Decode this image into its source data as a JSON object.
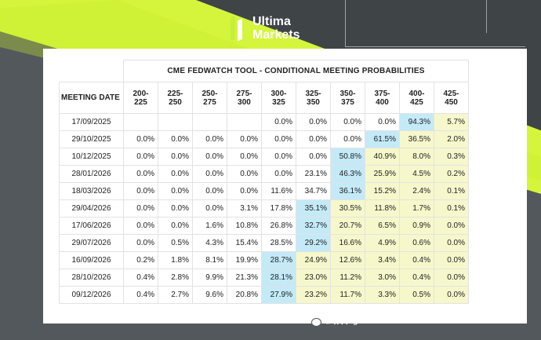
{
  "brand": {
    "line1": "Ultima",
    "line2": "Markets"
  },
  "table": {
    "title": "CME FEDWATCH TOOL - CONDITIONAL MEETING PROBABILITIES",
    "date_header": "MEETING DATE",
    "columns": [
      "200-225",
      "225-250",
      "250-275",
      "275-300",
      "300-325",
      "325-350",
      "350-375",
      "375-400",
      "400-425",
      "425-450"
    ],
    "rows": [
      {
        "date": "17/09/2025",
        "values": [
          "",
          "",
          "",
          "",
          "0.0%",
          "0.0%",
          "0.0%",
          "0.0%",
          "94.3%",
          "5.7%"
        ]
      },
      {
        "date": "29/10/2025",
        "values": [
          "0.0%",
          "0.0%",
          "0.0%",
          "0.0%",
          "0.0%",
          "0.0%",
          "0.0%",
          "61.5%",
          "36.5%",
          "2.0%"
        ]
      },
      {
        "date": "10/12/2025",
        "values": [
          "0.0%",
          "0.0%",
          "0.0%",
          "0.0%",
          "0.0%",
          "0.0%",
          "50.8%",
          "40.9%",
          "8.0%",
          "0.3%"
        ]
      },
      {
        "date": "28/01/2026",
        "values": [
          "0.0%",
          "0.0%",
          "0.0%",
          "0.0%",
          "0.0%",
          "23.1%",
          "46.3%",
          "25.9%",
          "4.5%",
          "0.2%"
        ]
      },
      {
        "date": "18/03/2026",
        "values": [
          "0.0%",
          "0.0%",
          "0.0%",
          "0.0%",
          "11.6%",
          "34.7%",
          "36.1%",
          "15.2%",
          "2.4%",
          "0.1%"
        ]
      },
      {
        "date": "29/04/2026",
        "values": [
          "0.0%",
          "0.0%",
          "0.0%",
          "3.1%",
          "17.8%",
          "35.1%",
          "30.5%",
          "11.8%",
          "1.7%",
          "0.1%"
        ]
      },
      {
        "date": "17/06/2026",
        "values": [
          "0.0%",
          "0.0%",
          "1.6%",
          "10.8%",
          "26.8%",
          "32.7%",
          "20.7%",
          "6.5%",
          "0.9%",
          "0.0%"
        ]
      },
      {
        "date": "29/07/2026",
        "values": [
          "0.0%",
          "0.5%",
          "4.3%",
          "15.4%",
          "28.5%",
          "29.2%",
          "16.6%",
          "4.9%",
          "0.6%",
          "0.0%"
        ]
      },
      {
        "date": "16/09/2026",
        "values": [
          "0.2%",
          "1.8%",
          "8.1%",
          "19.9%",
          "28.7%",
          "24.9%",
          "12.6%",
          "3.4%",
          "0.4%",
          "0.0%"
        ]
      },
      {
        "date": "28/10/2026",
        "values": [
          "0.4%",
          "2.8%",
          "9.9%",
          "21.3%",
          "28.1%",
          "23.0%",
          "11.2%",
          "3.0%",
          "0.4%",
          "0.0%"
        ]
      },
      {
        "date": "09/12/2026",
        "values": [
          "0.4%",
          "2.7%",
          "9.6%",
          "20.8%",
          "27.9%",
          "23.2%",
          "11.7%",
          "3.3%",
          "0.5%",
          "0.0%"
        ]
      }
    ],
    "highlights": {
      "blue": [
        [
          0,
          8
        ],
        [
          1,
          7
        ],
        [
          2,
          6
        ],
        [
          3,
          6
        ],
        [
          4,
          6
        ],
        [
          5,
          5
        ],
        [
          6,
          5
        ],
        [
          7,
          5
        ],
        [
          8,
          4
        ],
        [
          9,
          4
        ],
        [
          10,
          4
        ]
      ],
      "yellow": [
        [
          0,
          9
        ],
        [
          1,
          8
        ],
        [
          1,
          9
        ],
        [
          2,
          7
        ],
        [
          2,
          8
        ],
        [
          2,
          9
        ],
        [
          3,
          7
        ],
        [
          3,
          8
        ],
        [
          3,
          9
        ],
        [
          4,
          7
        ],
        [
          4,
          8
        ],
        [
          4,
          9
        ],
        [
          5,
          6
        ],
        [
          5,
          7
        ],
        [
          5,
          8
        ],
        [
          5,
          9
        ],
        [
          6,
          6
        ],
        [
          6,
          7
        ],
        [
          6,
          8
        ],
        [
          6,
          9
        ],
        [
          7,
          6
        ],
        [
          7,
          7
        ],
        [
          7,
          8
        ],
        [
          7,
          9
        ],
        [
          8,
          5
        ],
        [
          8,
          6
        ],
        [
          8,
          7
        ],
        [
          8,
          8
        ],
        [
          8,
          9
        ],
        [
          9,
          5
        ],
        [
          9,
          6
        ],
        [
          9,
          7
        ],
        [
          9,
          8
        ],
        [
          9,
          9
        ],
        [
          10,
          5
        ],
        [
          10,
          6
        ],
        [
          10,
          7
        ],
        [
          10,
          8
        ],
        [
          10,
          9
        ]
      ]
    },
    "colors": {
      "blue": "#c4eaf8",
      "yellow": "#f6f8cc"
    }
  },
  "watermark": {
    "text": "公众号 · UM UltimaMarkets",
    "icon": "wechat-icon"
  }
}
